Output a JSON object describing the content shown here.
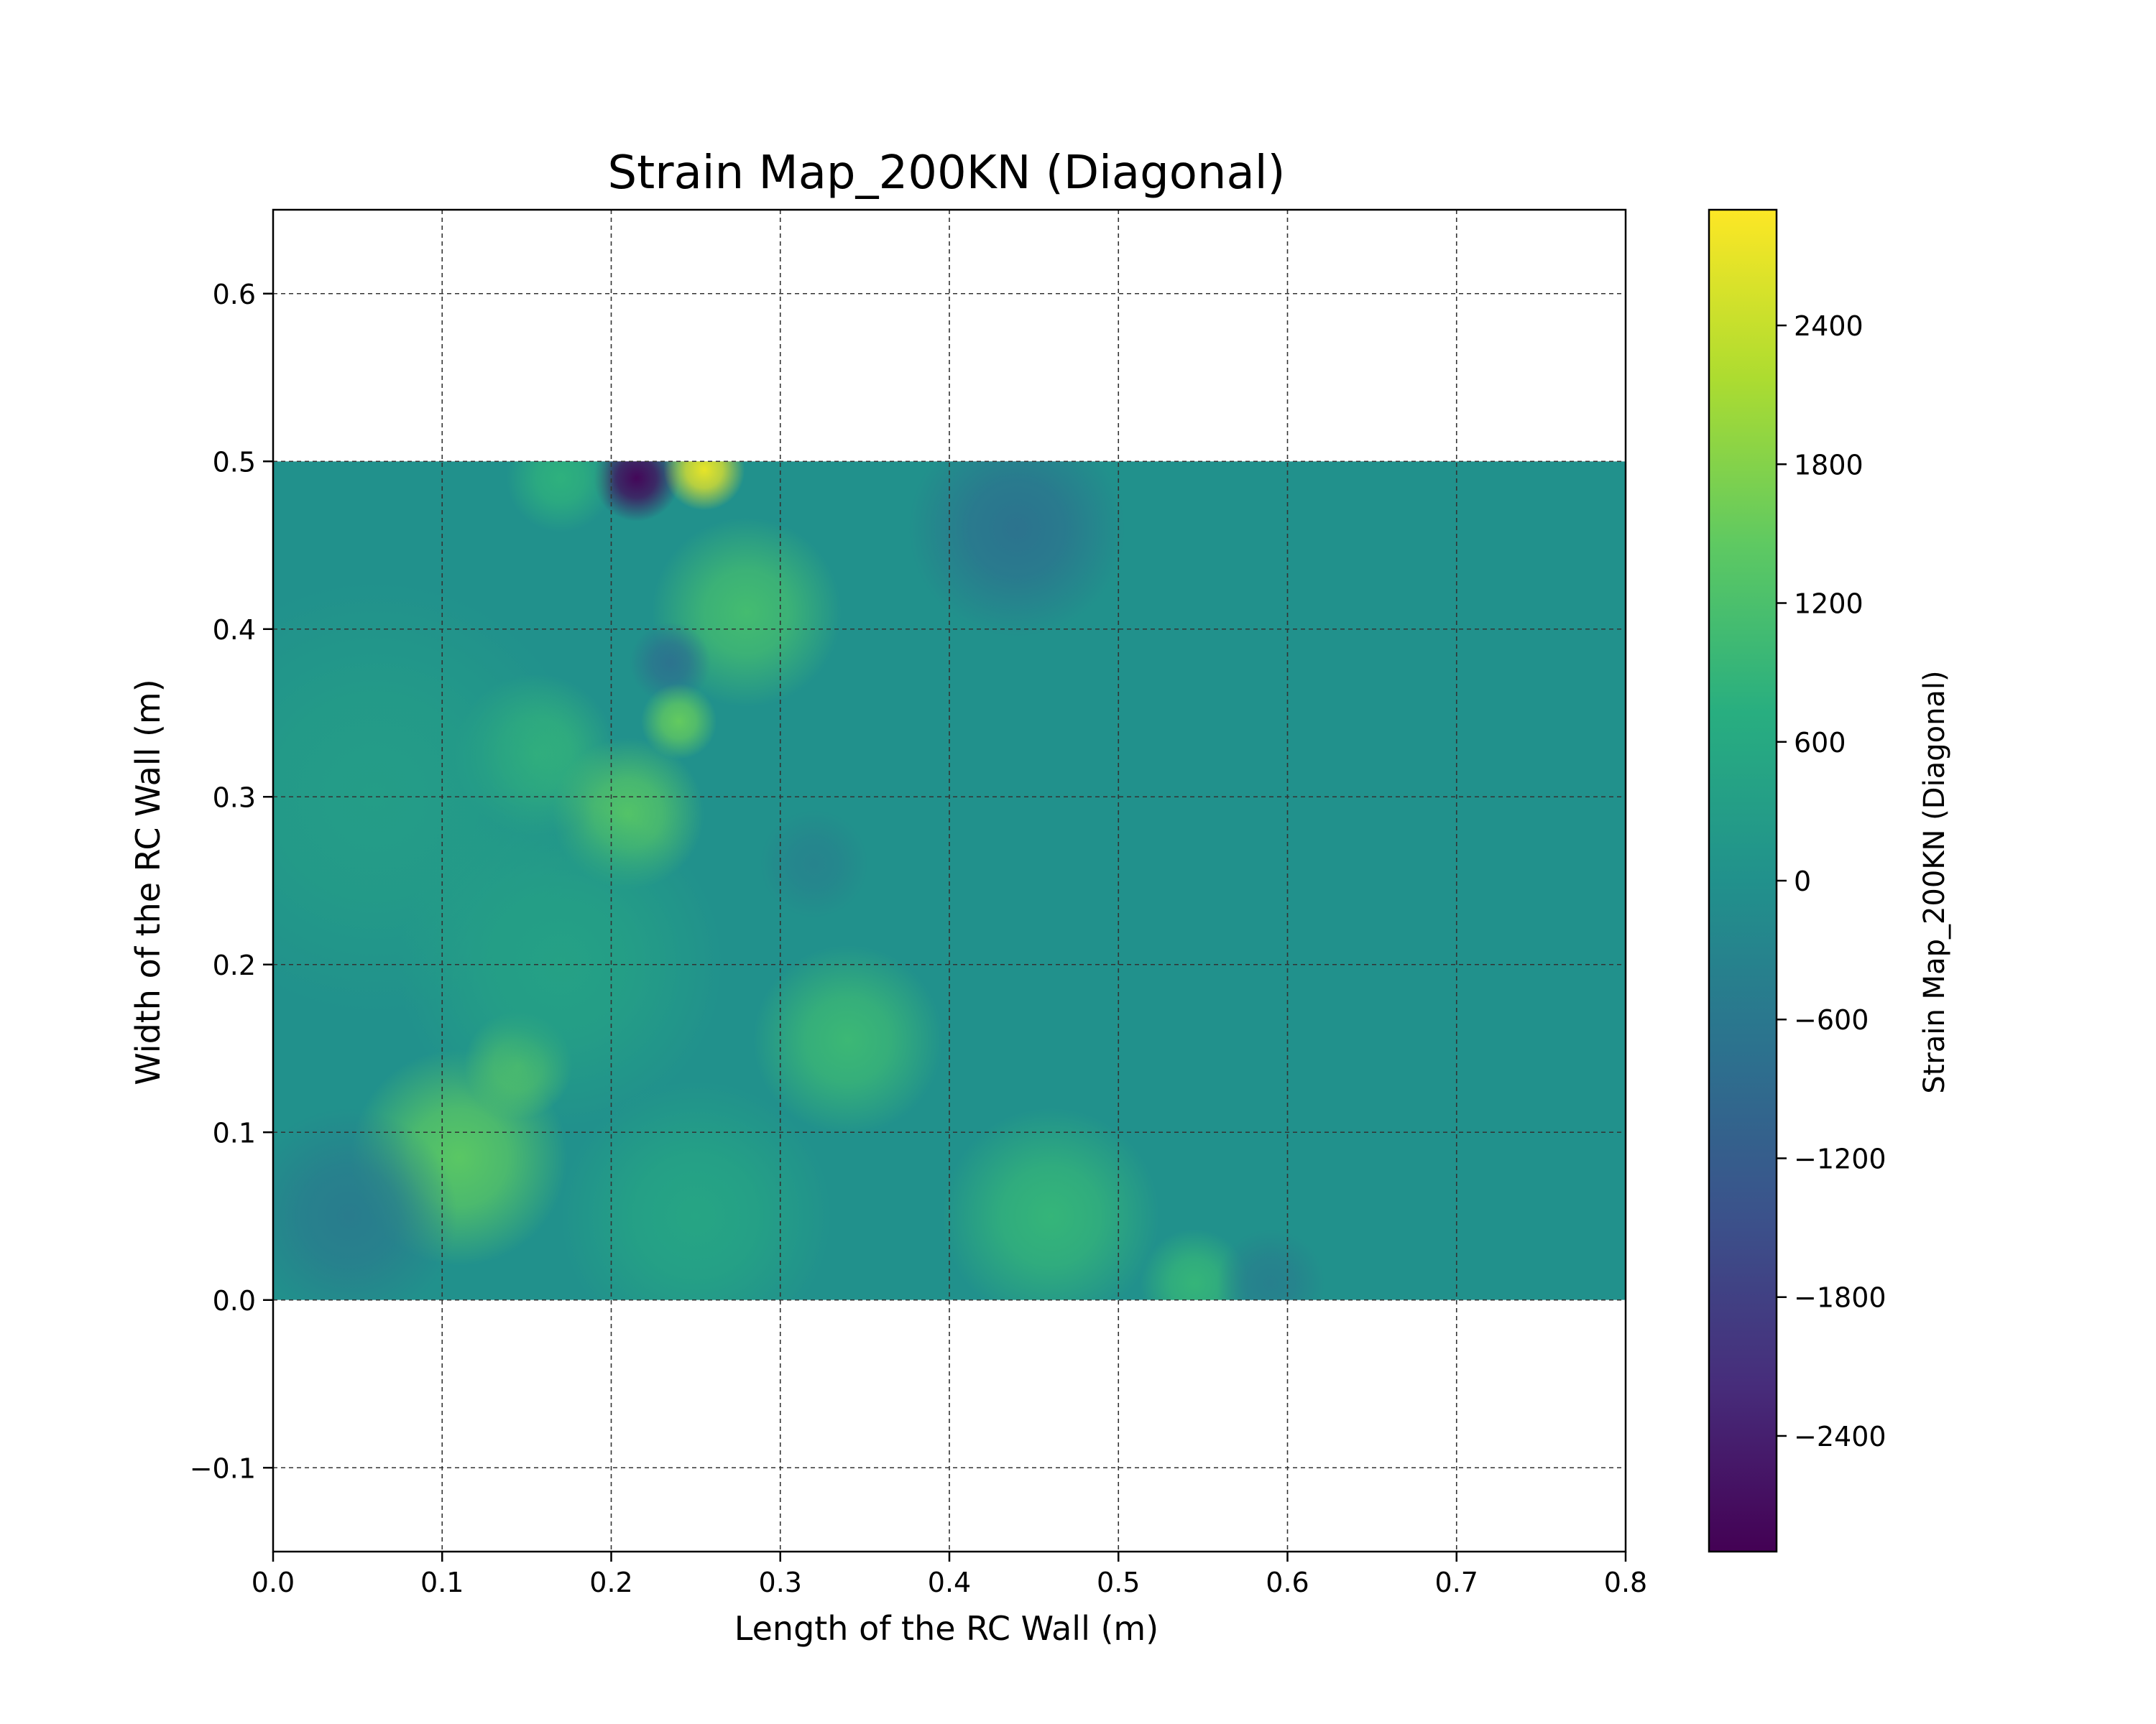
{
  "chart_data": {
    "type": "heatmap",
    "title": "Strain Map_200KN (Diagonal)",
    "xlabel": "Length of the RC Wall (m)",
    "ylabel": "Width of the RC Wall (m)",
    "colorbar_label": "Strain Map_200KN (Diagonal)",
    "colormap": "viridis",
    "xlim": [
      0.0,
      0.8
    ],
    "ylim": [
      -0.15,
      0.65
    ],
    "x_ticks": [
      0.0,
      0.1,
      0.2,
      0.3,
      0.4,
      0.5,
      0.6,
      0.7,
      0.8
    ],
    "x_tick_labels": [
      "0.0",
      "0.1",
      "0.2",
      "0.3",
      "0.4",
      "0.5",
      "0.6",
      "0.7",
      "0.8"
    ],
    "y_ticks": [
      -0.1,
      0.0,
      0.1,
      0.2,
      0.3,
      0.4,
      0.5,
      0.6
    ],
    "y_tick_labels": [
      "−0.1",
      "0.0",
      "0.1",
      "0.2",
      "0.3",
      "0.4",
      "0.5",
      "0.6"
    ],
    "colorbar_range": [
      -2900,
      2900
    ],
    "colorbar_ticks": [
      2400,
      1800,
      1200,
      600,
      0,
      -600,
      -1200,
      -1800,
      -2400
    ],
    "colorbar_tick_labels": [
      "2400",
      "1800",
      "1200",
      "600",
      "0",
      "−600",
      "−1200",
      "−1800",
      "−2400"
    ],
    "grid": true,
    "field_extent": {
      "x": [
        0.0,
        0.8
      ],
      "y": [
        0.0,
        0.5
      ]
    },
    "background_value": 0,
    "features": [
      {
        "x": 0.215,
        "y": 0.49,
        "value": -2800,
        "spread": 0.016
      },
      {
        "x": 0.255,
        "y": 0.495,
        "value": 2700,
        "spread": 0.015
      },
      {
        "x": 0.17,
        "y": 0.49,
        "value": 800,
        "spread": 0.02
      },
      {
        "x": 0.28,
        "y": 0.41,
        "value": 1100,
        "spread": 0.035
      },
      {
        "x": 0.44,
        "y": 0.46,
        "value": -700,
        "spread": 0.04
      },
      {
        "x": 0.235,
        "y": 0.38,
        "value": -700,
        "spread": 0.015
      },
      {
        "x": 0.24,
        "y": 0.345,
        "value": 1500,
        "spread": 0.014
      },
      {
        "x": 0.155,
        "y": 0.325,
        "value": 900,
        "spread": 0.03
      },
      {
        "x": 0.21,
        "y": 0.29,
        "value": 1300,
        "spread": 0.028
      },
      {
        "x": 0.32,
        "y": 0.26,
        "value": -300,
        "spread": 0.02
      },
      {
        "x": 0.145,
        "y": 0.14,
        "value": 1500,
        "spread": 0.02
      },
      {
        "x": 0.11,
        "y": 0.085,
        "value": 1400,
        "spread": 0.04
      },
      {
        "x": 0.34,
        "y": 0.155,
        "value": 1000,
        "spread": 0.035
      },
      {
        "x": 0.045,
        "y": 0.05,
        "value": -500,
        "spread": 0.04
      },
      {
        "x": 0.46,
        "y": 0.05,
        "value": 900,
        "spread": 0.04
      },
      {
        "x": 0.545,
        "y": 0.01,
        "value": 900,
        "spread": 0.02
      },
      {
        "x": 0.59,
        "y": 0.01,
        "value": -400,
        "spread": 0.02
      },
      {
        "x": 0.25,
        "y": 0.05,
        "value": 500,
        "spread": 0.05
      },
      {
        "x": 0.06,
        "y": 0.3,
        "value": 300,
        "spread": 0.08
      },
      {
        "x": 0.17,
        "y": 0.2,
        "value": 400,
        "spread": 0.06
      }
    ]
  }
}
